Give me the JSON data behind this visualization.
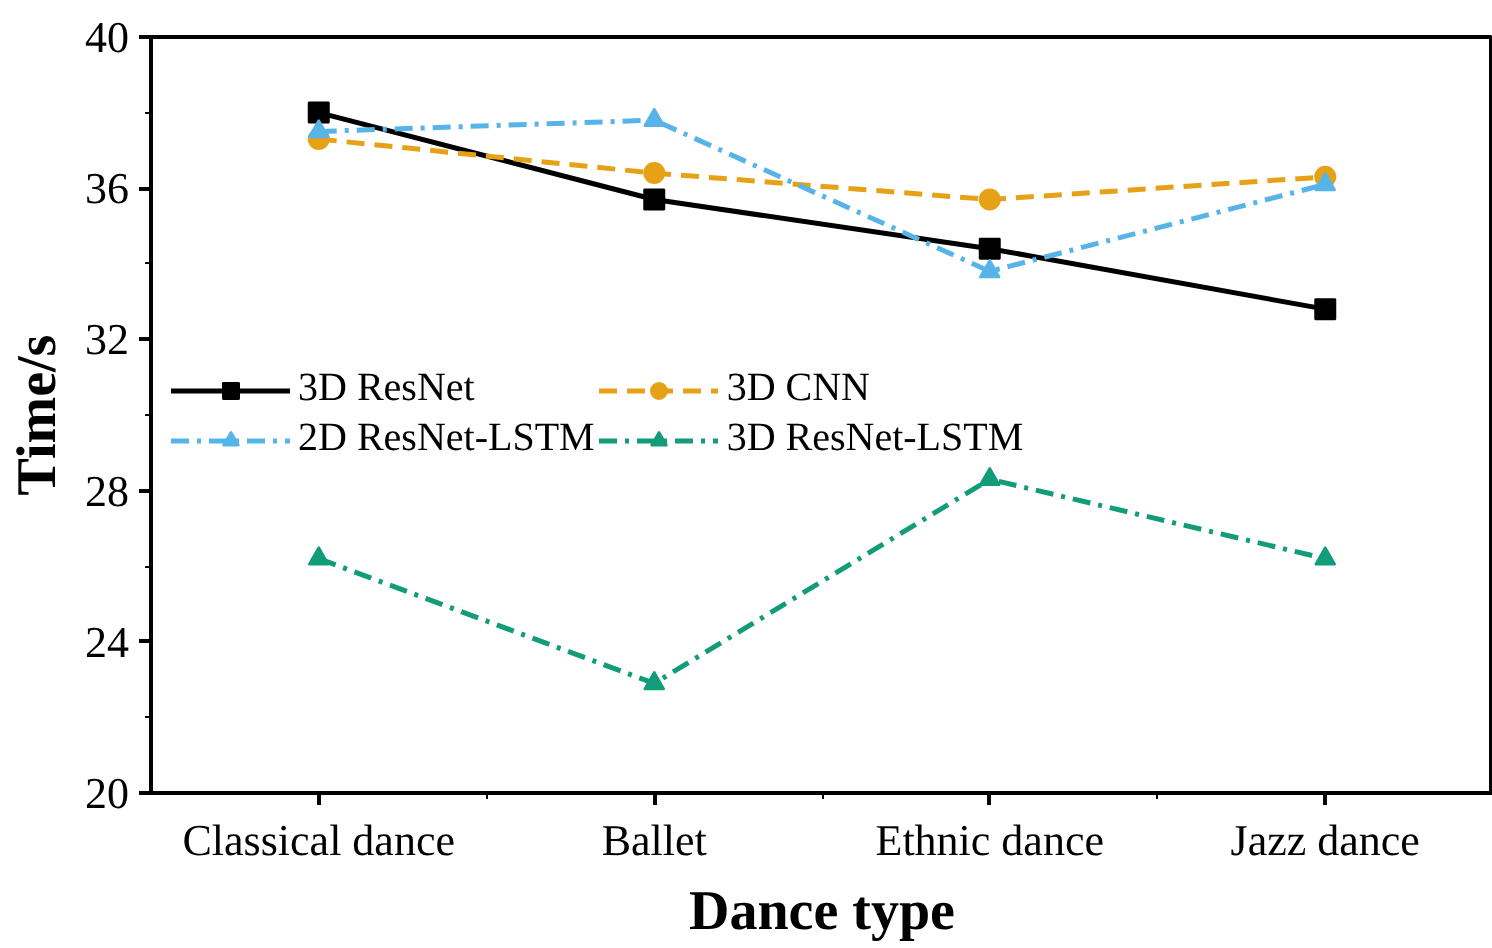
{
  "chart_data": {
    "type": "line",
    "xlabel": "Dance type",
    "ylabel": "Time/s",
    "categories": [
      "Classical dance",
      "Ballet",
      "Ethnic dance",
      "Jazz dance"
    ],
    "ylim": [
      20,
      40
    ],
    "yticks": [
      20,
      24,
      28,
      32,
      36,
      40
    ],
    "grid": false,
    "legend": "left",
    "series": [
      {
        "name": "3D ResNet",
        "color": "#000000",
        "marker": "square",
        "line_style": "solid",
        "values": [
          38.0,
          35.7,
          34.4,
          32.8
        ]
      },
      {
        "name": "3D CNN",
        "color": "#e6a117",
        "marker": "circle",
        "line_style": "dashed",
        "values": [
          37.3,
          36.4,
          35.7,
          36.3
        ]
      },
      {
        "name": "2D ResNet-LSTM",
        "color": "#56b4e9",
        "marker": "triangle",
        "line_style": "dashdot",
        "values": [
          37.5,
          37.8,
          33.8,
          36.1
        ]
      },
      {
        "name": "3D ResNet-LSTM",
        "color": "#129c7a",
        "marker": "triangle",
        "line_style": "dashdot",
        "values": [
          26.2,
          22.9,
          28.3,
          26.2
        ]
      }
    ]
  }
}
